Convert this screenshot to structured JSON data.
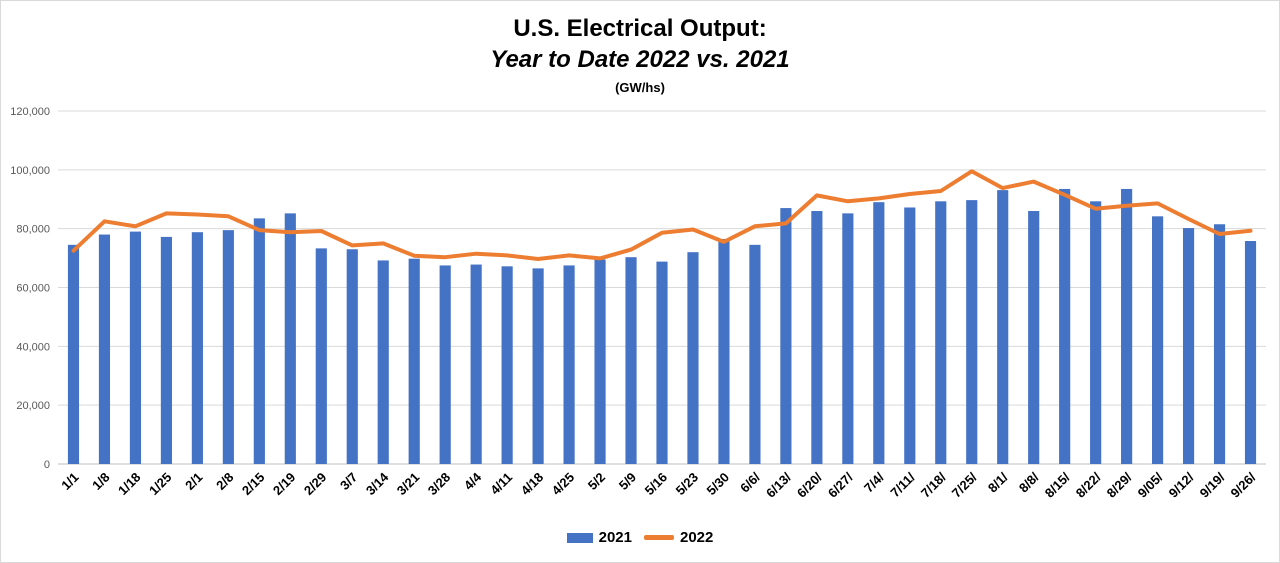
{
  "chart_data": {
    "type": "bar",
    "title": "U.S. Electrical Output:",
    "subtitle": "Year to Date 2022 vs. 2021",
    "units": "(GW/hs)",
    "categories": [
      "1/1",
      "1/8",
      "1/18",
      "1/25",
      "2/1",
      "2/8",
      "2/15",
      "2/19",
      "2/29",
      "3/7",
      "3/14",
      "3/21",
      "3/28",
      "4/4",
      "4/11",
      "4/18",
      "4/25",
      "5/2",
      "5/9",
      "5/16",
      "5/23",
      "5/30",
      "6/6/",
      "6/13/",
      "6/20/",
      "6/27/",
      "7/4/",
      "7/11/",
      "7/18/",
      "7/25/",
      "8/1/",
      "8/8/",
      "8/15/",
      "8/22/",
      "8/29/",
      "9/05/",
      "9/12/",
      "9/19/",
      "9/26/"
    ],
    "y_ticks": [
      "0",
      "20,000",
      "40,000",
      "60,000",
      "80,000",
      "100,000",
      "120,000"
    ],
    "ylim": [
      0,
      120000
    ],
    "grid": true,
    "legend_position": "bottom",
    "series": [
      {
        "name": "2021",
        "type": "bar",
        "color": "#4472C4",
        "values": [
          74500,
          78000,
          79000,
          77200,
          78800,
          79500,
          83500,
          85200,
          73300,
          73000,
          69200,
          69800,
          67500,
          67800,
          67200,
          66500,
          67500,
          69500,
          70300,
          68800,
          72000,
          76500,
          74500,
          87000,
          86000,
          85200,
          89000,
          87200,
          89300,
          89700,
          93100,
          86000,
          93500,
          89300,
          93500,
          84200,
          80200,
          81500,
          75800
        ]
      },
      {
        "name": "2022",
        "type": "line",
        "color": "#ED7D31",
        "values": [
          72500,
          82500,
          80800,
          85200,
          84800,
          84200,
          79500,
          78800,
          79200,
          74300,
          75000,
          70800,
          70300,
          71500,
          70900,
          69700,
          70900,
          69900,
          72900,
          78600,
          79700,
          75500,
          80800,
          81800,
          91300,
          89300,
          90300,
          91800,
          92800,
          99500,
          93800,
          96000,
          91500,
          86800,
          87800,
          88600,
          83300,
          78200,
          79300
        ]
      }
    ]
  }
}
